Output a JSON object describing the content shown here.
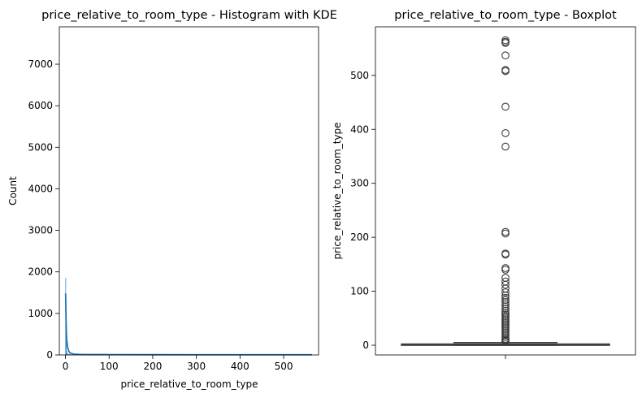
{
  "chart_data": [
    {
      "type": "histogram",
      "title": "price_relative_to_room_type - Histogram with KDE",
      "xlabel": "price_relative_to_room_type",
      "ylabel": "Count",
      "xlim": [
        -14,
        580
      ],
      "ylim": [
        0,
        7900
      ],
      "xticks": [
        0,
        100,
        200,
        300,
        400,
        500
      ],
      "yticks": [
        0,
        1000,
        2000,
        3000,
        4000,
        5000,
        6000,
        7000
      ],
      "bars": [
        {
          "x0": 0,
          "x1": 0.6,
          "count": 1850
        },
        {
          "x0": 0.6,
          "x1": 1.2,
          "count": 1200
        },
        {
          "x0": 1.2,
          "x1": 1.8,
          "count": 300
        },
        {
          "x0": 1.8,
          "x1": 3,
          "count": 90
        },
        {
          "x0": 3,
          "x1": 6,
          "count": 40
        },
        {
          "x0": 6,
          "x1": 12,
          "count": 15
        },
        {
          "x0": 12,
          "x1": 565,
          "count": 3
        }
      ],
      "kde": {
        "x": [
          0,
          0.5,
          1,
          2,
          3,
          5,
          8,
          12,
          20,
          40,
          100,
          200,
          300,
          400,
          500,
          565
        ],
        "y": [
          1480,
          1450,
          1100,
          600,
          380,
          180,
          80,
          40,
          20,
          10,
          8,
          6,
          5,
          5,
          5,
          5
        ]
      },
      "grid": false,
      "colors": {
        "bar": "#1f77b4",
        "kde": "#1f77b4"
      }
    },
    {
      "type": "boxplot",
      "title": "price_relative_to_room_type - Boxplot",
      "ylabel": "price_relative_to_room_type",
      "ylim": [
        -18,
        590
      ],
      "yticks": [
        0,
        100,
        200,
        300,
        400,
        500
      ],
      "box": {
        "q1": 0.3,
        "median": 1.0,
        "q3": 2.2,
        "whisker_low": 0,
        "whisker_high": 5
      },
      "outliers": [
        565,
        562,
        560,
        537,
        510,
        508,
        442,
        393,
        368,
        210,
        207,
        170,
        168,
        143,
        140,
        125,
        118,
        112,
        105,
        98,
        92,
        88,
        84,
        80,
        76,
        72,
        68,
        64,
        60,
        57,
        54,
        51,
        48,
        45,
        42,
        39,
        36,
        33,
        30,
        27,
        24,
        21,
        18,
        15,
        12,
        10,
        8,
        6.5
      ],
      "grid": false,
      "colors": {
        "box": "#1f77b4",
        "line": "#3d3d3d"
      }
    }
  ]
}
